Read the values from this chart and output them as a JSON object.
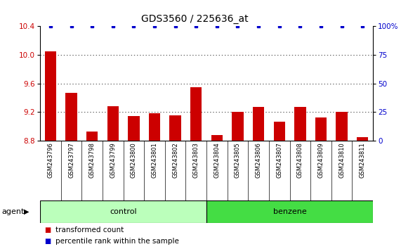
{
  "title": "GDS3560 / 225636_at",
  "samples": [
    "GSM243796",
    "GSM243797",
    "GSM243798",
    "GSM243799",
    "GSM243800",
    "GSM243801",
    "GSM243802",
    "GSM243803",
    "GSM243804",
    "GSM243805",
    "GSM243806",
    "GSM243807",
    "GSM243808",
    "GSM243809",
    "GSM243810",
    "GSM243811"
  ],
  "bar_values": [
    10.05,
    9.47,
    8.93,
    9.28,
    9.14,
    9.18,
    9.15,
    9.55,
    8.88,
    9.2,
    9.27,
    9.07,
    9.27,
    9.12,
    9.2,
    8.85
  ],
  "percentile_values": [
    100,
    100,
    100,
    100,
    100,
    100,
    100,
    100,
    100,
    100,
    100,
    100,
    100,
    100,
    100,
    100
  ],
  "bar_color": "#cc0000",
  "percentile_color": "#0000cc",
  "ylim_left": [
    8.8,
    10.4
  ],
  "ylim_right": [
    0,
    100
  ],
  "yticks_left": [
    8.8,
    9.2,
    9.6,
    10.0,
    10.4
  ],
  "yticks_right": [
    0,
    25,
    50,
    75,
    100
  ],
  "ytick_labels_right": [
    "0",
    "25",
    "50",
    "75",
    "100%"
  ],
  "groups": [
    {
      "label": "control",
      "start": 0,
      "end": 7,
      "color": "#bbffbb"
    },
    {
      "label": "benzene",
      "start": 8,
      "end": 15,
      "color": "#44dd44"
    }
  ],
  "agent_label": "agent",
  "legend_bar_label": "transformed count",
  "legend_pct_label": "percentile rank within the sample",
  "bar_width": 0.55,
  "background_color": "#ffffff",
  "grid_color": "#000000",
  "tick_label_color_left": "#cc0000",
  "tick_label_color_right": "#0000cc",
  "title_color": "#000000",
  "title_fontsize": 10,
  "tick_fontsize": 7.5,
  "sample_fontsize": 6.0,
  "label_fontsize": 7.5,
  "xlabel_bg_color": "#cccccc"
}
